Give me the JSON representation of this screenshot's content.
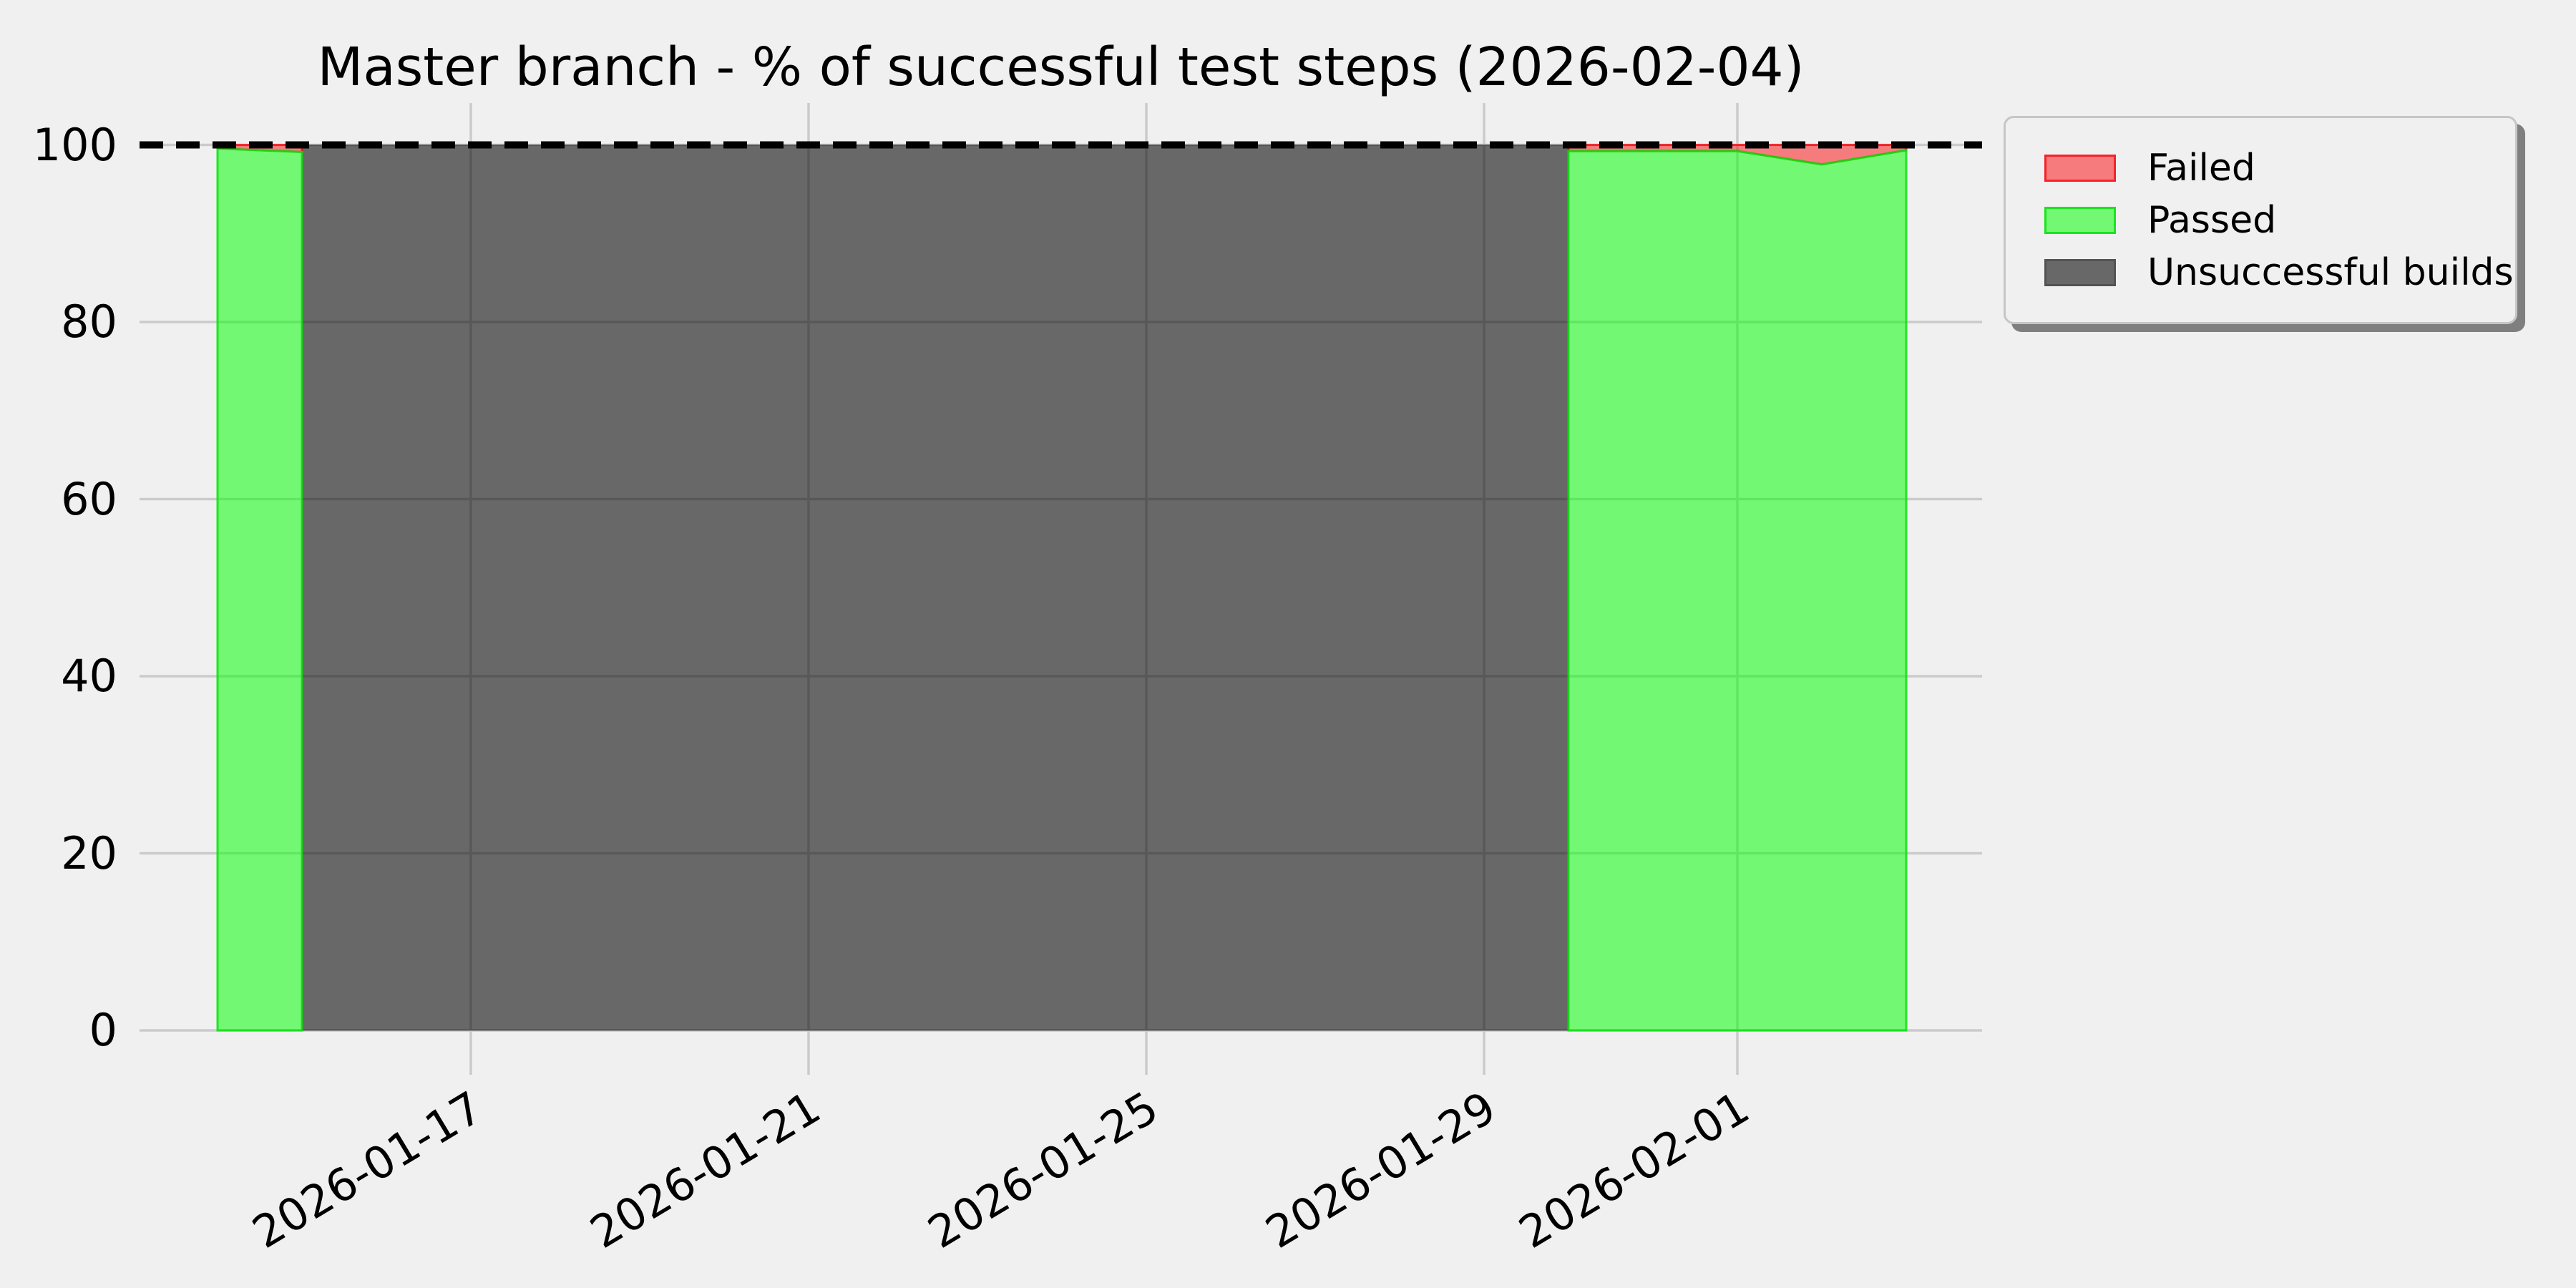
{
  "colors": {
    "background": "#f0f0f0",
    "grid": "#cbcbcb",
    "text": "#000000",
    "threshold": "#000000",
    "legend_border": "#c6c6c6",
    "legend_shadow": "#7f7f7f"
  },
  "chart_data": {
    "type": "area",
    "stacked": true,
    "title": "Master branch - % of successful test steps (2026-02-04)",
    "xlabel": "",
    "ylabel": "",
    "x_range": [
      "2026-01-14",
      "2026-02-03"
    ],
    "ylim": [
      -5,
      105
    ],
    "grid": true,
    "y_ticks": [
      0,
      20,
      40,
      60,
      80,
      100
    ],
    "x_ticks": [
      "2026-01-17",
      "2026-01-21",
      "2026-01-25",
      "2026-01-29",
      "2026-02-01"
    ],
    "threshold_line": {
      "value": 100,
      "style": "dashed"
    },
    "legend_position": "outside-upper-right",
    "series": [
      {
        "key": "failed",
        "label": "Failed",
        "fill": "rgba(250,15,20,0.52)",
        "edge": "rgba(248,12,18,0.8)"
      },
      {
        "key": "passed",
        "label": "Passed",
        "fill": "rgba(0,255,0,0.52)",
        "edge": "rgba(10,225,15,0.85)"
      },
      {
        "key": "unsuccessful",
        "label": "Unsuccessful builds",
        "fill": "rgba(0,0,0,0.57)",
        "edge": "rgba(0,0,0,0.2)"
      }
    ],
    "segments": [
      {
        "x": [
          "2026-01-14",
          "2026-01-15"
        ],
        "passed": [
          99.6,
          99.2
        ],
        "failed": [
          0.4,
          0.8
        ],
        "unsuccessful": [
          0,
          0
        ]
      },
      {
        "x": [
          "2026-01-15",
          "2026-01-30"
        ],
        "passed": [
          0,
          0
        ],
        "failed": [
          0,
          0
        ],
        "unsuccessful": [
          100,
          100
        ]
      },
      {
        "x": [
          "2026-01-30",
          "2026-02-01",
          "2026-02-02",
          "2026-02-03"
        ],
        "passed": [
          99.3,
          99.3,
          97.8,
          99.4
        ],
        "failed": [
          0.7,
          0.7,
          2.2,
          0.6
        ],
        "unsuccessful": [
          0,
          0,
          0,
          0
        ]
      }
    ]
  }
}
